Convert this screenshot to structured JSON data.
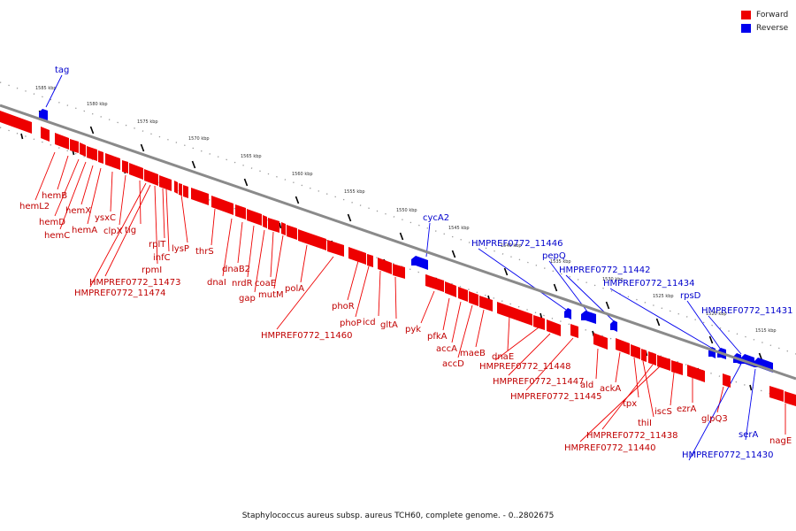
{
  "caption": "Staphylococcus aureus subsp. aureus TCH60, complete genome. - 0..2802675",
  "legend": {
    "forward_label": "Forward",
    "reverse_label": "Reverse",
    "forward_color": "#ee0000",
    "reverse_color": "#0000ee"
  },
  "axis": {
    "kbp_start": 1587,
    "kbp_end": 1513,
    "tick_labels": [
      "1585 kbp",
      "1580 kbp",
      "1575 kbp",
      "1570 kbp",
      "1565 kbp",
      "1560 kbp",
      "1555 kbp",
      "1550 kbp",
      "1545 kbp",
      "1540 kbp",
      "1535 kbp",
      "1530 kbp",
      "1525 kbp",
      "1520 kbp",
      "1515 kbp"
    ]
  },
  "genes": [
    {
      "name": "hemL2",
      "strand": "forward",
      "kbp": 1583.0
    },
    {
      "name": "hemB",
      "strand": "forward",
      "kbp": 1581.2
    },
    {
      "name": "hemD",
      "strand": "forward",
      "kbp": 1580.5
    },
    {
      "name": "hemC",
      "strand": "forward",
      "kbp": 1579.8
    },
    {
      "name": "hemX",
      "strand": "forward",
      "kbp": 1579.1
    },
    {
      "name": "hemA",
      "strand": "forward",
      "kbp": 1578.4
    },
    {
      "name": "ysxC",
      "strand": "forward",
      "kbp": 1577.5
    },
    {
      "name": "clpX",
      "strand": "forward",
      "kbp": 1576.5
    },
    {
      "name": "tig",
      "strand": "forward",
      "kbp": 1575.2
    },
    {
      "name": "rplT",
      "strand": "forward",
      "kbp": 1573.6
    },
    {
      "name": "infC",
      "strand": "forward",
      "kbp": 1573.0
    },
    {
      "name": "rpmI",
      "strand": "forward",
      "kbp": 1573.3
    },
    {
      "name": "HMPREF0772_11473",
      "strand": "forward",
      "kbp": 1572.7
    },
    {
      "name": "HMPREF0772_11474",
      "strand": "forward",
      "kbp": 1572.3
    },
    {
      "name": "lysP",
      "strand": "forward",
      "kbp": 1571.8
    },
    {
      "name": "thrS",
      "strand": "forward",
      "kbp": 1569.4
    },
    {
      "name": "dnaI",
      "strand": "forward",
      "kbp": 1566.8
    },
    {
      "name": "dnaB2",
      "strand": "forward",
      "kbp": 1565.5
    },
    {
      "name": "nrdR",
      "strand": "forward",
      "kbp": 1564.6
    },
    {
      "name": "gap",
      "strand": "forward",
      "kbp": 1564.0
    },
    {
      "name": "coaE",
      "strand": "forward",
      "kbp": 1563.2
    },
    {
      "name": "mutM",
      "strand": "forward",
      "kbp": 1562.6
    },
    {
      "name": "polA",
      "strand": "forward",
      "kbp": 1560.5
    },
    {
      "name": "HMPREF0772_11460",
      "strand": "forward",
      "kbp": 1557.7
    },
    {
      "name": "phoR",
      "strand": "forward",
      "kbp": 1556.2
    },
    {
      "name": "phoP",
      "strand": "forward",
      "kbp": 1555.2
    },
    {
      "name": "icd",
      "strand": "forward",
      "kbp": 1553.9
    },
    {
      "name": "gltA",
      "strand": "forward",
      "kbp": 1552.6
    },
    {
      "name": "cycA2",
      "strand": "reverse",
      "kbp": 1549.3
    },
    {
      "name": "pyk",
      "strand": "forward",
      "kbp": 1546.8
    },
    {
      "name": "pfkA",
      "strand": "forward",
      "kbp": 1545.3
    },
    {
      "name": "accA",
      "strand": "forward",
      "kbp": 1544.2
    },
    {
      "name": "accD",
      "strand": "forward",
      "kbp": 1543.4
    },
    {
      "name": "maeB",
      "strand": "forward",
      "kbp": 1542.0
    },
    {
      "name": "dnaE",
      "strand": "forward",
      "kbp": 1538.8
    },
    {
      "name": "HMPREF0772_11448",
      "strand": "forward",
      "kbp": 1536.4
    },
    {
      "name": "HMPREF0772_11446",
      "strand": "reverse",
      "kbp": 1534.4
    },
    {
      "name": "HMPREF0772_11447",
      "strand": "forward",
      "kbp": 1535.3
    },
    {
      "name": "pepQ",
      "strand": "reverse",
      "kbp": 1532.6
    },
    {
      "name": "HMPREF0772_11445",
      "strand": "forward",
      "kbp": 1533.6
    },
    {
      "name": "HMPREF0772_11442",
      "strand": "reverse",
      "kbp": 1530.0
    },
    {
      "name": "ald",
      "strand": "forward",
      "kbp": 1529.8
    },
    {
      "name": "ackA",
      "strand": "forward",
      "kbp": 1528.5
    },
    {
      "name": "tpx",
      "strand": "forward",
      "kbp": 1527.7
    },
    {
      "name": "thiI",
      "strand": "forward",
      "kbp": 1526.8
    },
    {
      "name": "HMPREF0772_11438",
      "strand": "forward",
      "kbp": 1526.0
    },
    {
      "name": "HMPREF0772_11440",
      "strand": "forward",
      "kbp": 1525.6
    },
    {
      "name": "iscS",
      "strand": "forward",
      "kbp": 1524.3
    },
    {
      "name": "ezrA",
      "strand": "forward",
      "kbp": 1523.0
    },
    {
      "name": "HMPREF0772_11434",
      "strand": "reverse",
      "kbp": 1522.5
    },
    {
      "name": "glpQ3",
      "strand": "forward",
      "kbp": 1520.5
    },
    {
      "name": "rpsD",
      "strand": "reverse",
      "kbp": 1521.5
    },
    {
      "name": "HMPREF0772_11431",
      "strand": "reverse",
      "kbp": 1519.9
    },
    {
      "name": "serA",
      "strand": "reverse",
      "kbp": 1518.4
    },
    {
      "name": "HMPREF0772_11430",
      "strand": "reverse",
      "kbp": 1519.2
    },
    {
      "name": "nagE",
      "strand": "forward",
      "kbp": 1514.0
    },
    {
      "name": "tag",
      "strand": "reverse",
      "kbp": 1585.0
    }
  ]
}
